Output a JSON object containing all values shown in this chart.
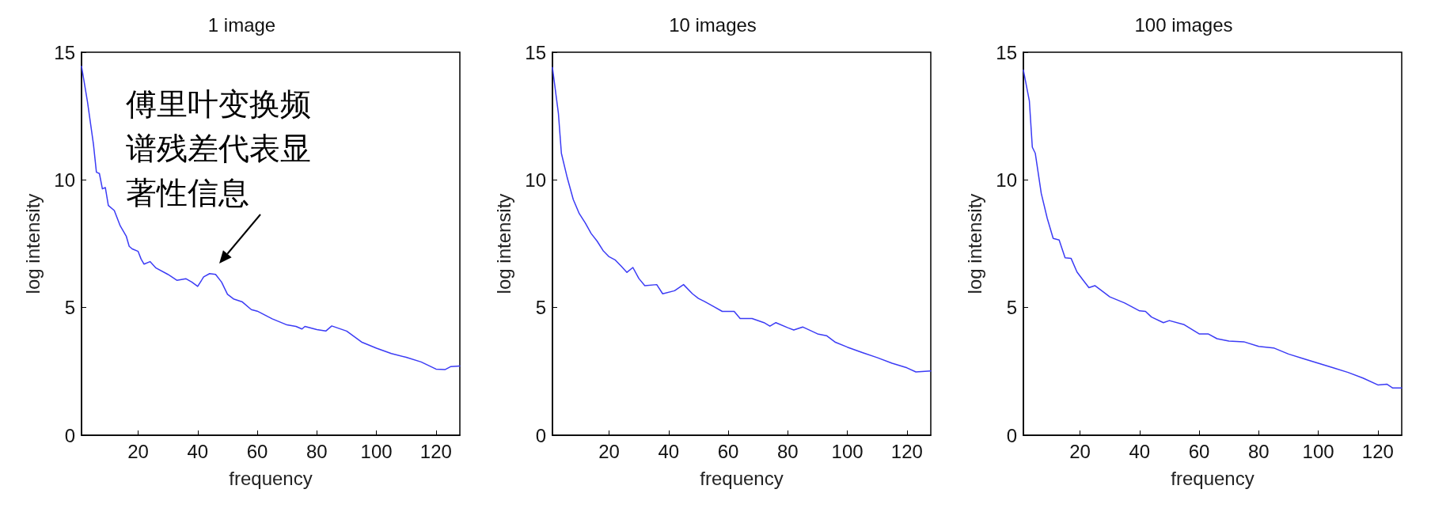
{
  "chart_data": [
    {
      "type": "line",
      "title": "1 image",
      "xlabel": "frequency",
      "ylabel": "log intensity",
      "xlim": [
        1,
        128
      ],
      "xticks": [
        20,
        40,
        60,
        80,
        100,
        120
      ],
      "ylim": [
        0,
        15
      ],
      "yticks": [
        0,
        5,
        10,
        15
      ],
      "grid": false,
      "marker": "none",
      "line_style": "solid",
      "annotations": [
        {
          "text": "傅里叶变换频谱残差代表显著性信息",
          "x": 45,
          "y": 6.4
        }
      ],
      "series": [
        {
          "color": "#3b3bf5",
          "x": [
            1,
            3,
            5,
            6,
            7,
            8,
            9,
            10,
            12,
            14,
            16,
            17,
            18,
            20,
            21,
            22,
            24,
            26,
            30,
            33,
            36,
            38,
            40,
            42,
            44,
            46,
            48,
            50,
            52,
            55,
            58,
            60,
            65,
            70,
            73,
            75,
            76,
            80,
            83,
            85,
            90,
            95,
            100,
            105,
            110,
            115,
            120,
            123,
            125,
            128
          ],
          "values": [
            14.45,
            13.06,
            11.4,
            10.3,
            10.25,
            9.65,
            9.7,
            9.0,
            8.8,
            8.2,
            7.8,
            7.4,
            7.3,
            7.2,
            6.9,
            6.7,
            6.8,
            6.55,
            6.3,
            6.07,
            6.13,
            6.0,
            5.83,
            6.2,
            6.33,
            6.3,
            6.0,
            5.52,
            5.34,
            5.22,
            4.92,
            4.86,
            4.56,
            4.32,
            4.26,
            4.16,
            4.26,
            4.14,
            4.08,
            4.28,
            4.08,
            3.65,
            3.41,
            3.2,
            3.05,
            2.87,
            2.59,
            2.57,
            2.69,
            2.71
          ]
        }
      ]
    },
    {
      "type": "line",
      "title": "10 images",
      "xlabel": "frequency",
      "ylabel": "log intensity",
      "xlim": [
        1,
        128
      ],
      "xticks": [
        20,
        40,
        60,
        80,
        100,
        120
      ],
      "ylim": [
        0,
        15
      ],
      "yticks": [
        0,
        5,
        10,
        15
      ],
      "grid": false,
      "marker": "none",
      "line_style": "solid",
      "series": [
        {
          "color": "#3b3bf5",
          "x": [
            1,
            3,
            4,
            6,
            8,
            10,
            12,
            14,
            16,
            18,
            20,
            22,
            24,
            26,
            28,
            30,
            32,
            36,
            38,
            42,
            45,
            48,
            50,
            52,
            55,
            58,
            62,
            64,
            68,
            72,
            74,
            76,
            80,
            82,
            85,
            90,
            93,
            96,
            100,
            105,
            110,
            115,
            120,
            123,
            128
          ],
          "values": [
            14.4,
            12.6,
            11.04,
            10.07,
            9.23,
            8.68,
            8.32,
            7.9,
            7.6,
            7.23,
            6.99,
            6.87,
            6.63,
            6.38,
            6.57,
            6.14,
            5.86,
            5.9,
            5.54,
            5.66,
            5.9,
            5.54,
            5.36,
            5.24,
            5.05,
            4.85,
            4.85,
            4.57,
            4.57,
            4.41,
            4.27,
            4.41,
            4.21,
            4.12,
            4.24,
            3.97,
            3.9,
            3.64,
            3.45,
            3.24,
            3.04,
            2.82,
            2.64,
            2.48,
            2.52
          ]
        }
      ]
    },
    {
      "type": "line",
      "title": "100 images",
      "xlabel": "frequency",
      "ylabel": "log intensity",
      "xlim": [
        1,
        128
      ],
      "xticks": [
        20,
        40,
        60,
        80,
        100,
        120
      ],
      "ylim": [
        0,
        15
      ],
      "yticks": [
        0,
        5,
        10,
        15
      ],
      "grid": false,
      "marker": "none",
      "line_style": "solid",
      "series": [
        {
          "color": "#3b3bf5",
          "x": [
            1,
            3,
            4,
            5,
            7,
            9,
            11,
            13,
            15,
            17,
            19,
            21,
            23,
            25,
            28,
            30,
            35,
            40,
            42,
            44,
            48,
            50,
            55,
            60,
            63,
            66,
            70,
            75,
            80,
            85,
            90,
            95,
            100,
            105,
            110,
            115,
            120,
            123,
            125,
            128
          ],
          "values": [
            14.3,
            13.1,
            11.28,
            11.04,
            9.47,
            8.5,
            7.71,
            7.65,
            6.95,
            6.93,
            6.39,
            6.08,
            5.78,
            5.86,
            5.6,
            5.42,
            5.18,
            4.87,
            4.85,
            4.63,
            4.41,
            4.49,
            4.33,
            3.97,
            3.97,
            3.78,
            3.69,
            3.66,
            3.48,
            3.42,
            3.18,
            3.0,
            2.82,
            2.64,
            2.46,
            2.24,
            1.97,
            2.0,
            1.85,
            1.85
          ]
        }
      ]
    }
  ]
}
